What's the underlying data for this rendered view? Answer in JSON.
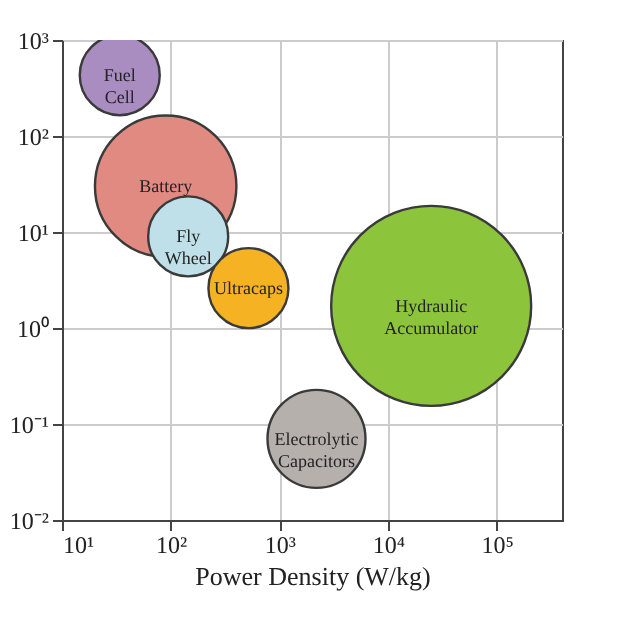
{
  "chart_data": {
    "type": "bubble",
    "xlabel": "Power Density (W/kg)",
    "series": [
      {
        "name": "Fuel Cell",
        "color": "#a98cc0",
        "x": [
          34
        ],
        "values": [
          430
        ],
        "sizes": [
          0.16
        ]
      },
      {
        "name": "Battery",
        "color": "#e08a82",
        "x": [
          90
        ],
        "values": [
          30
        ],
        "sizes": [
          0.5
        ]
      },
      {
        "name": "Fly Wheel",
        "color": "#bfe0e8",
        "x": [
          145
        ],
        "values": [
          9
        ],
        "sizes": [
          0.16
        ]
      },
      {
        "name": "Ultracaps",
        "color": "#f5b324",
        "x": [
          520
        ],
        "values": [
          2.6
        ],
        "sizes": [
          0.16
        ]
      },
      {
        "name": "Hydraulic Accumulator",
        "color": "#8cc43c",
        "x": [
          25000
        ],
        "values": [
          1.7
        ],
        "sizes": [
          1
        ]
      },
      {
        "name": "Electrolytic Capacitors",
        "color": "#b5b0ab",
        "x": [
          2200
        ],
        "values": [
          0.07
        ],
        "sizes": [
          0.24
        ]
      }
    ],
    "log": "xy",
    "grid": true,
    "xlim": [
      10,
      400000
    ],
    "ylim": [
      0.01,
      1000
    ],
    "xticks": [
      {
        "value": 10,
        "label": "10¹"
      },
      {
        "value": 100,
        "label": "10²"
      },
      {
        "value": 1000,
        "label": "10³"
      },
      {
        "value": 10000,
        "label": "10⁴"
      },
      {
        "value": 100000,
        "label": "10⁵"
      }
    ],
    "yticks": [
      {
        "value": 0.01,
        "label": "10⁻²"
      },
      {
        "value": 0.1,
        "label": "10⁻¹"
      },
      {
        "value": 1,
        "label": "10⁰"
      },
      {
        "value": 10,
        "label": "10¹"
      },
      {
        "value": 100,
        "label": "10²"
      },
      {
        "value": 1000,
        "label": "10³"
      }
    ]
  }
}
